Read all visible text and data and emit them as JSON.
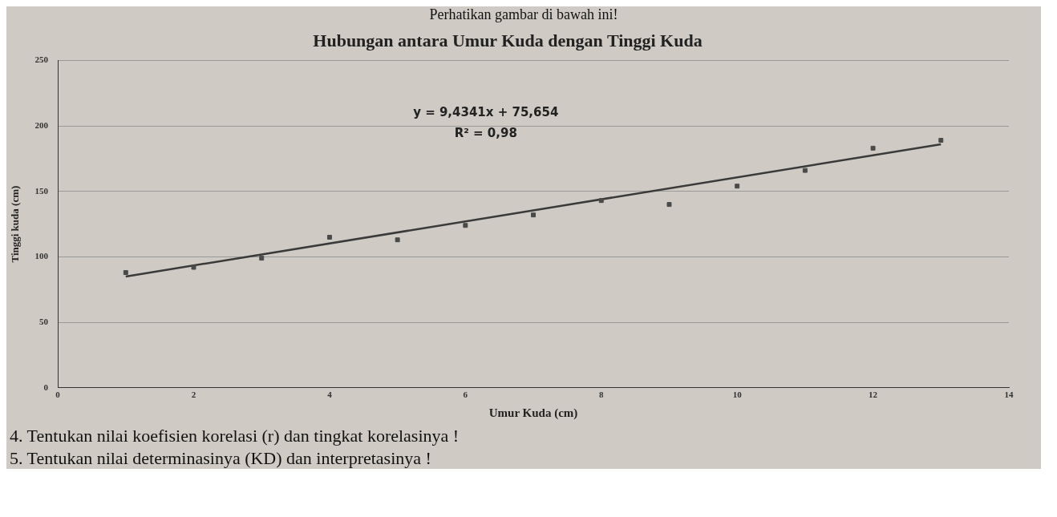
{
  "chart_data": {
    "type": "scatter",
    "title": "Hubungan antara Umur Kuda dengan Tinggi Kuda",
    "xlabel": "Umur Kuda (cm)",
    "ylabel": "Tinggi kuda (cm)",
    "x": [
      1,
      2,
      3,
      4,
      5,
      6,
      7,
      8,
      9,
      10,
      11,
      12,
      13
    ],
    "series": [
      {
        "type": "scatter",
        "color": "#4a4a4a",
        "values": [
          88,
          92,
          99,
          115,
          113,
          124,
          132,
          143,
          140,
          154,
          166,
          183,
          189
        ]
      },
      {
        "type": "line",
        "color": "#3a3a3a",
        "x": [
          1,
          13
        ],
        "values": [
          85,
          186
        ],
        "marker": "none"
      }
    ],
    "xlim": [
      0,
      14
    ],
    "xticks": [
      0,
      2,
      4,
      6,
      8,
      10,
      12,
      14
    ],
    "ylim": [
      0,
      250
    ],
    "yticks": [
      0,
      50,
      100,
      150,
      200,
      250
    ],
    "grid": "y",
    "marker": "square",
    "legend": false,
    "annotations": [
      "Perhatikan gambar di bawah ini!",
      "y = 9,4341x + 75,654",
      "R² = 0,98",
      "4.  Tentukan nilai koefisien korelasi (r) dan tingkat korelasinya !",
      "5.  Tentukan nilai  determinasinya (KD) dan interpretasinya !"
    ]
  }
}
